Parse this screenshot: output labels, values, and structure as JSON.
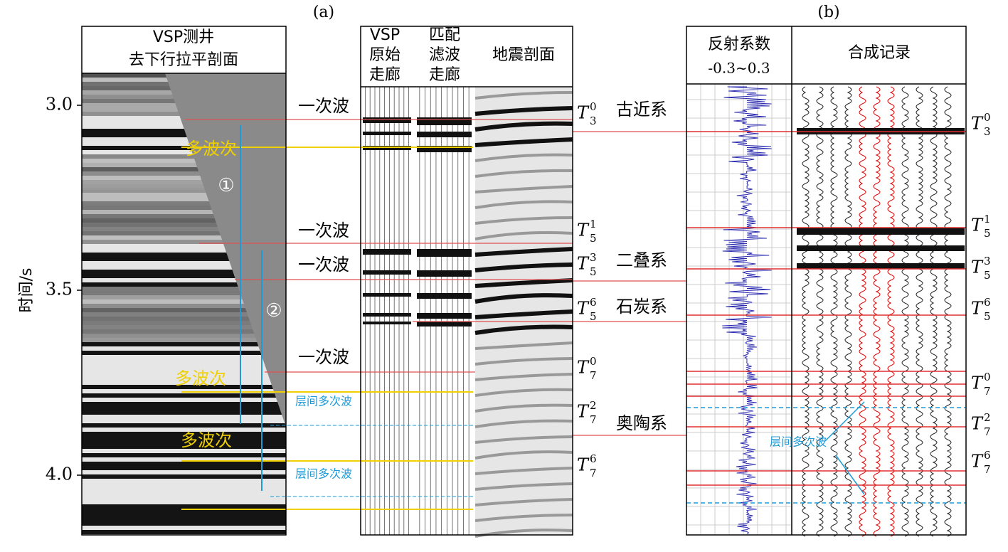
{
  "panel_a": {
    "label": "(a)",
    "vsp_title": [
      "VSP测井",
      "去下行拉平剖面"
    ],
    "corridor_headers": [
      [
        "VSP",
        "原始",
        "走廊"
      ],
      [
        "匹配",
        "滤波",
        "走廊"
      ]
    ],
    "seismic_header": "地震剖面",
    "y_axis_label": "时间/s",
    "y_ticks": [
      "3.0",
      "3.5",
      "4.0"
    ],
    "primary_labels": [
      "一次波",
      "一次波",
      "一次波",
      "一次波"
    ],
    "multiple_labels": [
      "多波次",
      "多波次",
      "多波次"
    ],
    "path_markers": [
      "①",
      "②"
    ],
    "interbed_labels": [
      "层间多次波",
      "层间多次波"
    ],
    "horizons": [
      {
        "base": "T",
        "sup": "0",
        "sub": "3"
      },
      {
        "base": "T",
        "sup": "1",
        "sub": "5"
      },
      {
        "base": "T",
        "sup": "3",
        "sub": "5"
      },
      {
        "base": "T",
        "sup": "6",
        "sub": "5"
      },
      {
        "base": "T",
        "sup": "0",
        "sub": "7"
      },
      {
        "base": "T",
        "sup": "2",
        "sub": "7"
      },
      {
        "base": "T",
        "sup": "6",
        "sub": "7"
      }
    ]
  },
  "formations": [
    "古近系",
    "二叠系",
    "石炭系",
    "奥陶系"
  ],
  "panel_b": {
    "label": "(b)",
    "reflectivity_header": [
      "反射系数",
      "-0.3~0.3"
    ],
    "synthetic_header": "合成记录",
    "interbed_label": "层间多次波",
    "horizons": [
      {
        "base": "T",
        "sup": "0",
        "sub": "3"
      },
      {
        "base": "T",
        "sup": "1",
        "sub": "5"
      },
      {
        "base": "T",
        "sup": "3",
        "sub": "5"
      },
      {
        "base": "T",
        "sup": "6",
        "sub": "5"
      },
      {
        "base": "T",
        "sup": "0",
        "sub": "7"
      },
      {
        "base": "T",
        "sup": "2",
        "sub": "7"
      },
      {
        "base": "T",
        "sup": "6",
        "sub": "7"
      }
    ]
  }
}
